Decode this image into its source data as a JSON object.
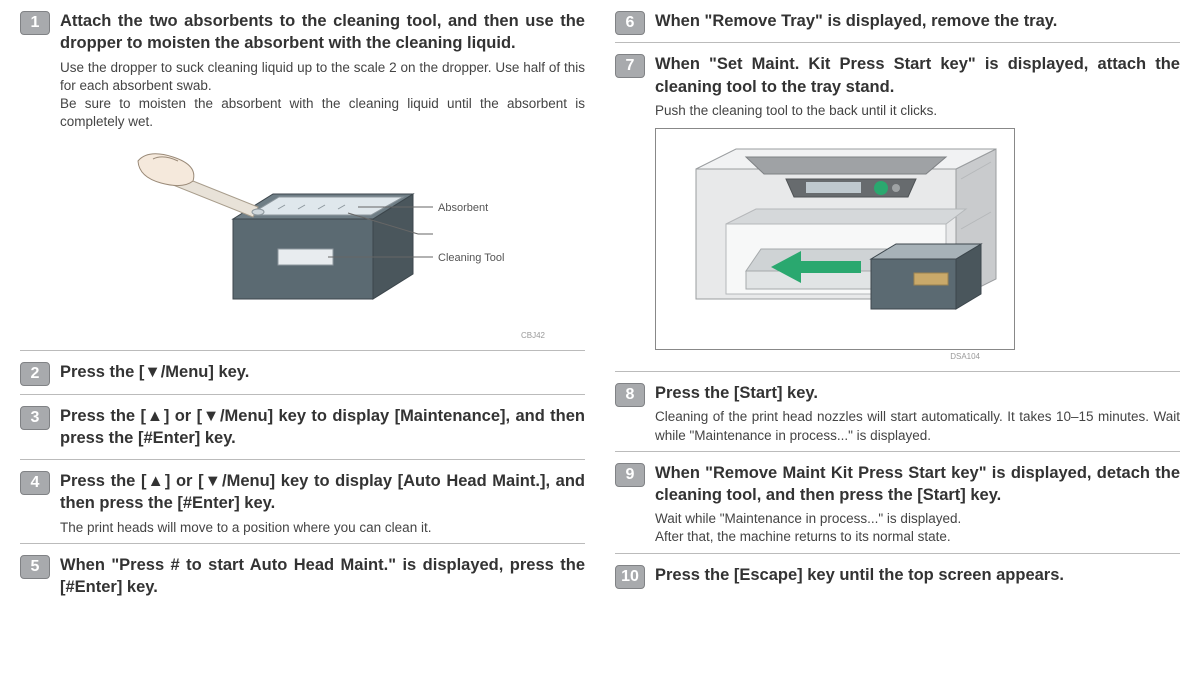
{
  "styles": {
    "badge_bg": "#a8aaad",
    "badge_border": "#808285",
    "badge_text": "#ffffff",
    "divider_color": "#bbbbbb",
    "body_text": "#333333",
    "desc_text": "#444444",
    "title_fontsize": 16.5,
    "desc_fontsize": 13.5,
    "badge_fontsize": 16
  },
  "figure1": {
    "labels": {
      "absorbent": "Absorbent",
      "tool": "Cleaning Tool"
    },
    "caption": "CBJ42",
    "colors": {
      "box_front": "#5b6a72",
      "box_side": "#4a565c",
      "box_top": "#6f7e86",
      "highlight": "#dfe7ec",
      "hand_fill": "#f5e9dc",
      "hand_stroke": "#9a8a78",
      "line": "#666666"
    }
  },
  "figure2": {
    "caption": "DSA104",
    "colors": {
      "frame": "#888888",
      "printer_body": "#e8e9ea",
      "printer_shadow": "#c9cbcd",
      "printer_dark": "#9fa2a5",
      "panel_dark": "#676b6e",
      "button_green": "#2aa86f",
      "arrow_green": "#2aa86f",
      "tool_front": "#5b6a72",
      "tool_side": "#4a565c",
      "tool_top": "#a7b2b8"
    }
  },
  "left": [
    {
      "num": "1",
      "title": "Attach the two absorbents to the cleaning tool, and then use the dropper to moisten the absorbent with the cleaning liquid.",
      "desc": "Use the dropper to suck cleaning liquid up to the scale 2 on the dropper. Use half of this for each absorbent swab.\nBe sure to moisten the absorbent with the cleaning liquid until the absorbent is completely wet.",
      "figure": 1
    },
    {
      "num": "2",
      "title": "Press the [▼/Menu] key."
    },
    {
      "num": "3",
      "title": "Press the [▲] or [▼/Menu] key to display [Maintenance], and then press the [#Enter] key."
    },
    {
      "num": "4",
      "title": "Press the [▲] or [▼/Menu] key to display [Auto Head Maint.], and then press the [#Enter] key.",
      "desc": "The print heads will move to a position where you can clean it."
    },
    {
      "num": "5",
      "title": "When \"Press # to start Auto Head Maint.\" is displayed, press the [#Enter] key."
    }
  ],
  "right": [
    {
      "num": "6",
      "title": "When \"Remove Tray\" is displayed, remove the tray."
    },
    {
      "num": "7",
      "title": "When \"Set Maint. Kit Press Start key\" is displayed, attach the cleaning tool to the tray stand.",
      "desc": "Push the cleaning tool to the back until it clicks.",
      "figure": 2
    },
    {
      "num": "8",
      "title": "Press the [Start] key.",
      "desc": "Cleaning of the print head nozzles will start automatically. It takes 10–15 minutes. Wait while \"Maintenance in process...\" is displayed."
    },
    {
      "num": "9",
      "title": "When \"Remove Maint Kit Press Start key\" is displayed, detach the cleaning tool, and then press the [Start] key.",
      "desc": "Wait while \"Maintenance in process...\" is displayed.\nAfter that, the machine returns to its normal state."
    },
    {
      "num": "10",
      "title": "Press the [Escape] key until the top screen appears."
    }
  ]
}
